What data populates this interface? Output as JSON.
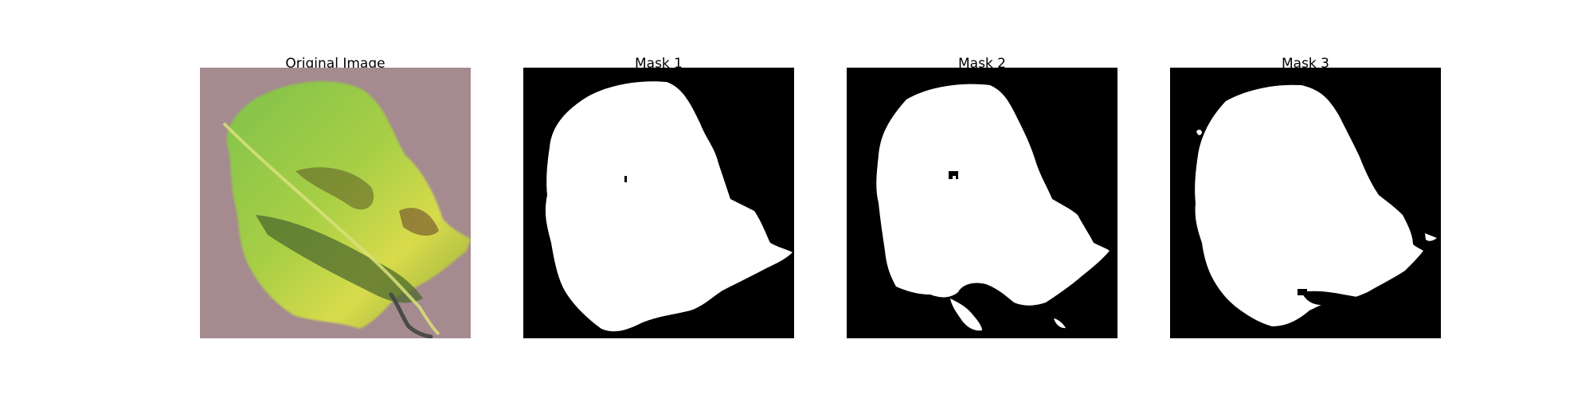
{
  "panels": [
    {
      "title": "Original Image",
      "kind": "photo"
    },
    {
      "title": "Mask 1",
      "kind": "mask"
    },
    {
      "title": "Mask 2",
      "kind": "mask"
    },
    {
      "title": "Mask 3",
      "kind": "mask"
    }
  ],
  "colors": {
    "background": "#ffffff",
    "mask_background": "#000000",
    "mask_foreground": "#ffffff",
    "photo_background": "#a58a8f",
    "leaf_green": "#6fae3a",
    "leaf_yellow": "#d7d94a",
    "leaf_shadow": "#4e6a2e"
  }
}
